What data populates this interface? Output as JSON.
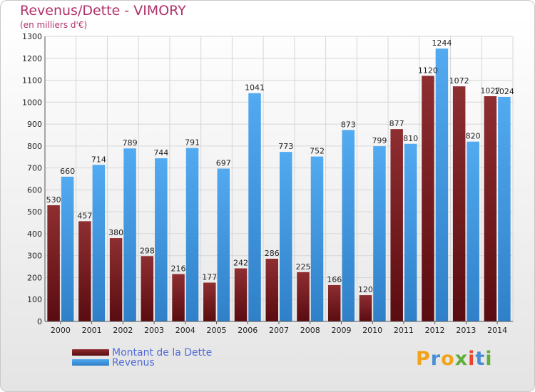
{
  "chart_data": {
    "type": "bar",
    "title": "Revenus/Dette - VIMORY",
    "subtitle": "(en milliers d'€)",
    "categories": [
      "2000",
      "2001",
      "2002",
      "2003",
      "2004",
      "2005",
      "2006",
      "2007",
      "2008",
      "2009",
      "2010",
      "2011",
      "2012",
      "2013",
      "2014"
    ],
    "series": [
      {
        "name": "Montant de la Dette",
        "color": "#7a1f22",
        "values": [
          530,
          457,
          380,
          298,
          216,
          177,
          242,
          286,
          225,
          166,
          120,
          877,
          1120,
          1072,
          1027
        ]
      },
      {
        "name": "Revenus",
        "color": "#3c97e0",
        "values": [
          660,
          714,
          789,
          744,
          791,
          697,
          1041,
          773,
          752,
          873,
          799,
          810,
          1244,
          820,
          1024
        ]
      }
    ],
    "ylim": [
      0,
      1300
    ],
    "yticks": [
      0,
      100,
      200,
      300,
      400,
      500,
      600,
      700,
      800,
      900,
      1000,
      1100,
      1200,
      1300
    ],
    "grid": true,
    "legend_position": "bottom-left"
  },
  "brand": {
    "letters": [
      {
        "ch": "P",
        "color": "#f2a31a"
      },
      {
        "ch": "r",
        "color": "#4a8fd4"
      },
      {
        "ch": "o",
        "color": "#f2a31a"
      },
      {
        "ch": "x",
        "color": "#5fae3a"
      },
      {
        "ch": "i",
        "color": "#e8452c"
      },
      {
        "ch": "t",
        "color": "#4a8fd4"
      },
      {
        "ch": "i",
        "color": "#5fae3a"
      }
    ]
  }
}
